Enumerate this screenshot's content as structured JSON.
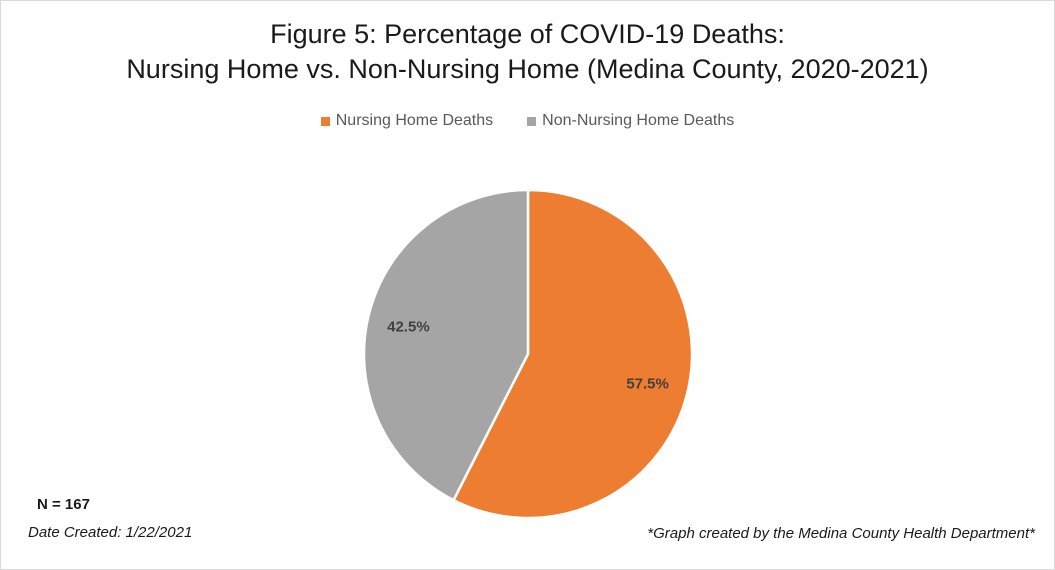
{
  "chart_data": {
    "type": "pie",
    "title_lines": [
      "Figure 5: Percentage of COVID-19 Deaths:",
      "Nursing Home vs. Non-Nursing Home (Medina County, 2020-2021)"
    ],
    "categories": [
      "Nursing Home Deaths",
      "Non-Nursing Home Deaths"
    ],
    "values": [
      57.5,
      42.5
    ],
    "value_labels": [
      "57.5%",
      "42.5%"
    ],
    "colors": [
      "#ED7D31",
      "#A5A5A5"
    ],
    "legend_position": "top",
    "start_angle": "12 o'clock",
    "direction": "clockwise"
  },
  "notes": {
    "n": "N = 167",
    "date_created": "Date Created: 1/22/2021",
    "credit": "*Graph created by the Medina County Health Department*"
  }
}
